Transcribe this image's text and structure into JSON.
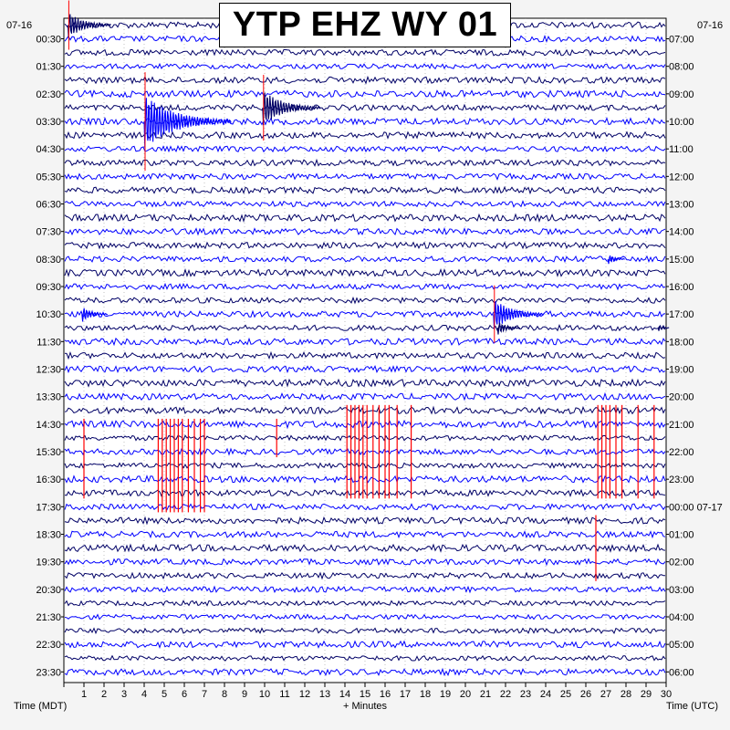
{
  "chart_data": {
    "type": "helicorder",
    "title": "YTP EHZ WY 01",
    "left_date": "07-16",
    "right_date": "07-16",
    "xlabel": "+ Minutes",
    "left_axis_label": "Time (MDT)",
    "right_axis_label": "Time (UTC)",
    "x_ticks": [
      "1",
      "2",
      "3",
      "4",
      "5",
      "6",
      "7",
      "8",
      "9",
      "10",
      "11",
      "12",
      "13",
      "14",
      "15",
      "16",
      "17",
      "18",
      "19",
      "20",
      "21",
      "22",
      "23",
      "24",
      "25",
      "26",
      "27",
      "28",
      "29",
      "30"
    ],
    "xlim": [
      0,
      30
    ],
    "trace_count": 48,
    "left_times": [
      "00:30",
      "01:30",
      "02:30",
      "03:30",
      "04:30",
      "05:30",
      "06:30",
      "07:30",
      "08:30",
      "09:30",
      "10:30",
      "11:30",
      "12:30",
      "13:30",
      "14:30",
      "15:30",
      "16:30",
      "17:30",
      "18:30",
      "19:30",
      "20:30",
      "21:30",
      "22:30",
      "23:30"
    ],
    "right_times": [
      "07:00",
      "08:00",
      "09:00",
      "10:00",
      "11:00",
      "12:00",
      "13:00",
      "14:00",
      "15:00",
      "16:00",
      "17:00",
      "18:00",
      "19:00",
      "20:00",
      "21:00",
      "22:00",
      "23:00",
      "00:00 07-17",
      "01:00",
      "02:00",
      "03:00",
      "04:00",
      "05:00",
      "06:00"
    ],
    "trace_colors": [
      "#000066",
      "#0000ff"
    ],
    "clip_color": "#ff0000",
    "events": [
      {
        "trace": 0,
        "minute": 0.2,
        "amplitude": 3,
        "clipped": true
      },
      {
        "trace": 7,
        "minute": 4.0,
        "amplitude": 6,
        "clipped": true
      },
      {
        "trace": 6,
        "minute": 9.9,
        "amplitude": 4,
        "clipped": true
      },
      {
        "trace": 17,
        "minute": 27.1,
        "amplitude": 1.2,
        "clipped": false
      },
      {
        "trace": 21,
        "minute": 0.9,
        "amplitude": 1.8,
        "clipped": false
      },
      {
        "trace": 21,
        "minute": 21.4,
        "amplitude": 3.5,
        "clipped": true
      },
      {
        "trace": 22,
        "minute": 21.6,
        "amplitude": 1.6,
        "clipped": false
      },
      {
        "trace": 22,
        "minute": 29.6,
        "amplitude": 0.8,
        "clipped": false
      }
    ],
    "clip_bursts": [
      {
        "trace_start": 29,
        "trace_end": 34,
        "minutes": [
          1.0
        ]
      },
      {
        "trace_start": 29,
        "trace_end": 35,
        "minutes": [
          4.7,
          4.9,
          5.1,
          5.3,
          5.5,
          5.7,
          5.9,
          6.2,
          6.5,
          6.8,
          7.0
        ]
      },
      {
        "trace_start": 29,
        "trace_end": 31,
        "minutes": [
          10.6
        ]
      },
      {
        "trace_start": 28,
        "trace_end": 34,
        "minutes": [
          14.1,
          14.3,
          14.5,
          14.7,
          14.9,
          15.1,
          15.4,
          15.7,
          16.0,
          16.2,
          16.6,
          17.3
        ]
      },
      {
        "trace_start": 28,
        "trace_end": 34,
        "minutes": [
          26.6,
          26.8,
          27.0,
          27.2,
          27.5,
          27.8,
          28.6,
          29.4
        ]
      },
      {
        "trace_start": 36,
        "trace_end": 40,
        "minutes": [
          26.5
        ]
      }
    ]
  }
}
